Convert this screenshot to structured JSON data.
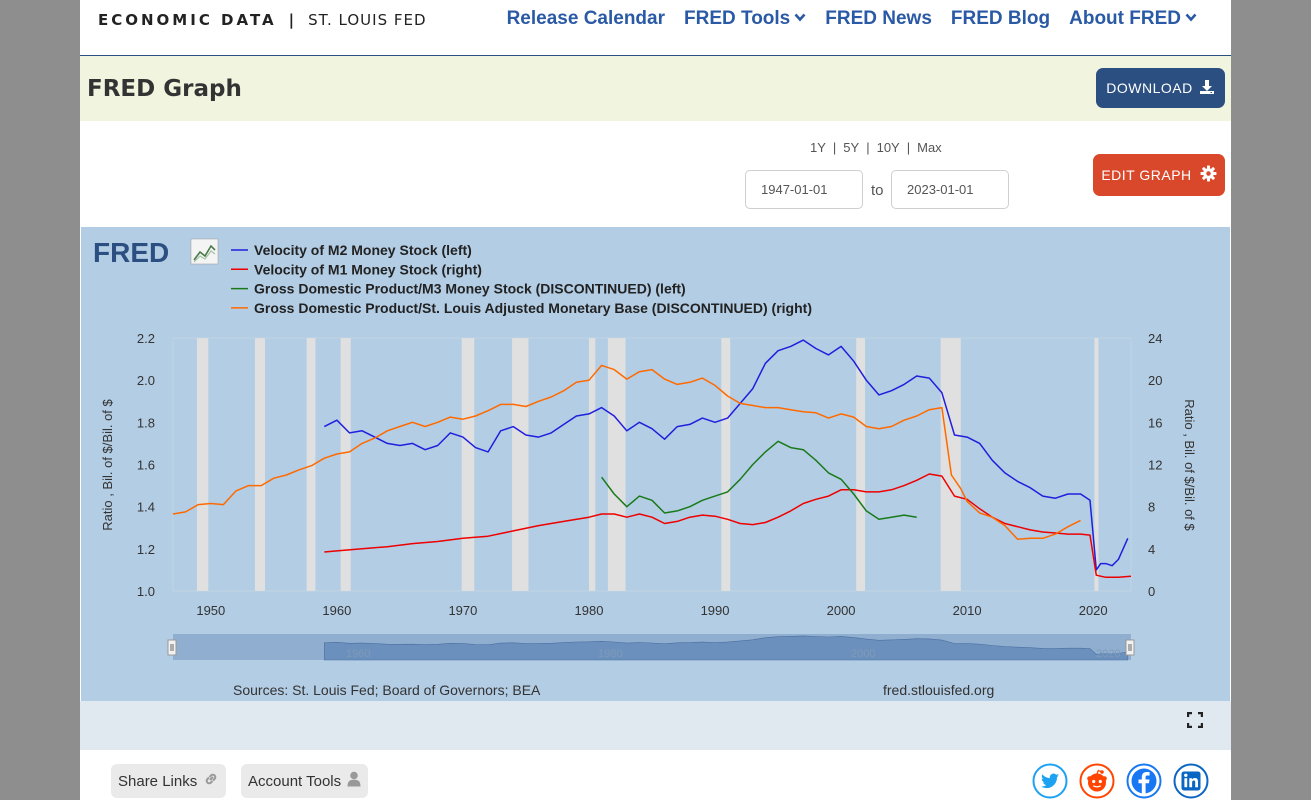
{
  "header": {
    "logo_left": "ECONOMIC DATA",
    "logo_sep": "|",
    "logo_right": "ST. LOUIS FED",
    "nav": [
      {
        "label": "Release Calendar",
        "dropdown": false
      },
      {
        "label": "FRED Tools",
        "dropdown": true
      },
      {
        "label": "FRED News",
        "dropdown": false
      },
      {
        "label": "FRED Blog",
        "dropdown": false
      },
      {
        "label": "About FRED",
        "dropdown": true
      }
    ]
  },
  "title_band": {
    "title": "FRED Graph",
    "download_label": "DOWNLOAD"
  },
  "controls": {
    "ranges": [
      "1Y",
      "5Y",
      "10Y",
      "Max"
    ],
    "start_date": "1947-01-01",
    "to_label": "to",
    "end_date": "2023-01-01",
    "edit_label": "EDIT GRAPH"
  },
  "chart": {
    "logo_text": "FRED",
    "sources": "Sources: St. Louis Fed; Board of Governors; BEA",
    "site": "fred.stlouisfed.org"
  },
  "bottom": {
    "share_label": "Share Links",
    "account_label": "Account Tools"
  },
  "colors": {
    "nav": "#2a5aa5",
    "header_band": "#f1f4df",
    "download_bg": "#2b4f80",
    "edit_bg": "#d9482b",
    "chart_bg": "#e1e9f0",
    "twitter": "#1da1f2",
    "reddit": "#ff4500",
    "facebook": "#1877f2",
    "linkedin": "#0a66c2"
  },
  "icons": {
    "download": "download-icon",
    "edit": "gear-icon",
    "share": "link-icon",
    "account": "user-icon",
    "fullscreen": "expand-icon",
    "social": [
      "twitter-icon",
      "reddit-icon",
      "facebook-icon",
      "linkedin-icon"
    ]
  },
  "chart_data": {
    "type": "line",
    "xlabel": "",
    "ylabel_left": "Ratio , Bil. of $/Bil. of $",
    "ylabel_right": "Ratio , Bil. of $/Bil. of $",
    "xlim": [
      1947,
      2023
    ],
    "ylim_left": [
      1.0,
      2.2
    ],
    "ylim_right": [
      0,
      24
    ],
    "x_ticks": [
      1950,
      1960,
      1970,
      1980,
      1990,
      2000,
      2010,
      2020
    ],
    "y_ticks_left": [
      1.0,
      1.2,
      1.4,
      1.6,
      1.8,
      2.0,
      2.2
    ],
    "y_ticks_left_labels": [
      "1.0",
      "1.2",
      "1.4",
      "1.6",
      "1.8",
      "2.0",
      "2.2"
    ],
    "y_ticks_right": [
      0,
      4,
      8,
      12,
      16,
      20,
      24
    ],
    "grid": false,
    "legend_position": "top-left",
    "recessions": [
      [
        1948.9,
        1949.8
      ],
      [
        1953.5,
        1954.3
      ],
      [
        1957.6,
        1958.3
      ],
      [
        1960.3,
        1961.1
      ],
      [
        1969.9,
        1970.9
      ],
      [
        1973.9,
        1975.2
      ],
      [
        1980.0,
        1980.5
      ],
      [
        1981.5,
        1982.9
      ],
      [
        1990.5,
        1991.2
      ],
      [
        2001.2,
        2001.9
      ],
      [
        2007.9,
        2009.5
      ],
      [
        2020.1,
        2020.3
      ]
    ],
    "series": [
      {
        "name": "Velocity of M2 Money Stock (left)",
        "color": "#1f1fdd",
        "axis": "left",
        "points": [
          [
            1959.0,
            1.78
          ],
          [
            1960.0,
            1.81
          ],
          [
            1961.0,
            1.75
          ],
          [
            1962.0,
            1.76
          ],
          [
            1963.0,
            1.73
          ],
          [
            1964.0,
            1.7
          ],
          [
            1965.0,
            1.69
          ],
          [
            1966.0,
            1.7
          ],
          [
            1967.0,
            1.67
          ],
          [
            1968.0,
            1.69
          ],
          [
            1969.0,
            1.75
          ],
          [
            1970.0,
            1.73
          ],
          [
            1971.0,
            1.68
          ],
          [
            1972.0,
            1.66
          ],
          [
            1973.0,
            1.76
          ],
          [
            1974.0,
            1.78
          ],
          [
            1975.0,
            1.74
          ],
          [
            1976.0,
            1.73
          ],
          [
            1977.0,
            1.75
          ],
          [
            1978.0,
            1.79
          ],
          [
            1979.0,
            1.83
          ],
          [
            1980.0,
            1.84
          ],
          [
            1981.0,
            1.87
          ],
          [
            1982.0,
            1.83
          ],
          [
            1983.0,
            1.76
          ],
          [
            1984.0,
            1.8
          ],
          [
            1985.0,
            1.77
          ],
          [
            1986.0,
            1.72
          ],
          [
            1987.0,
            1.78
          ],
          [
            1988.0,
            1.79
          ],
          [
            1989.0,
            1.82
          ],
          [
            1990.0,
            1.8
          ],
          [
            1991.0,
            1.82
          ],
          [
            1992.0,
            1.89
          ],
          [
            1993.0,
            1.96
          ],
          [
            1994.0,
            2.08
          ],
          [
            1995.0,
            2.14
          ],
          [
            1996.0,
            2.16
          ],
          [
            1997.0,
            2.19
          ],
          [
            1998.0,
            2.15
          ],
          [
            1999.0,
            2.12
          ],
          [
            2000.0,
            2.16
          ],
          [
            2001.0,
            2.09
          ],
          [
            2002.0,
            2.0
          ],
          [
            2003.0,
            1.93
          ],
          [
            2004.0,
            1.95
          ],
          [
            2005.0,
            1.98
          ],
          [
            2006.0,
            2.02
          ],
          [
            2007.0,
            2.01
          ],
          [
            2008.0,
            1.94
          ],
          [
            2009.0,
            1.74
          ],
          [
            2010.0,
            1.73
          ],
          [
            2011.0,
            1.7
          ],
          [
            2012.0,
            1.62
          ],
          [
            2013.0,
            1.56
          ],
          [
            2014.0,
            1.52
          ],
          [
            2015.0,
            1.49
          ],
          [
            2016.0,
            1.45
          ],
          [
            2017.0,
            1.44
          ],
          [
            2018.0,
            1.46
          ],
          [
            2019.0,
            1.46
          ],
          [
            2019.75,
            1.43
          ],
          [
            2020.25,
            1.1
          ],
          [
            2020.6,
            1.13
          ],
          [
            2021.0,
            1.13
          ],
          [
            2021.5,
            1.12
          ],
          [
            2022.0,
            1.15
          ],
          [
            2022.75,
            1.25
          ]
        ]
      },
      {
        "name": "Velocity of M1 Money Stock (right)",
        "color": "#ee0000",
        "axis": "right",
        "points": [
          [
            1959.0,
            3.7
          ],
          [
            1960.0,
            3.8
          ],
          [
            1962.0,
            4.0
          ],
          [
            1964.0,
            4.2
          ],
          [
            1966.0,
            4.5
          ],
          [
            1968.0,
            4.7
          ],
          [
            1970.0,
            5.0
          ],
          [
            1972.0,
            5.2
          ],
          [
            1974.0,
            5.7
          ],
          [
            1976.0,
            6.2
          ],
          [
            1978.0,
            6.6
          ],
          [
            1980.0,
            7.0
          ],
          [
            1981.0,
            7.3
          ],
          [
            1982.0,
            7.3
          ],
          [
            1983.0,
            7.0
          ],
          [
            1984.0,
            7.3
          ],
          [
            1985.0,
            7.0
          ],
          [
            1986.0,
            6.4
          ],
          [
            1987.0,
            6.6
          ],
          [
            1988.0,
            7.0
          ],
          [
            1989.0,
            7.2
          ],
          [
            1990.0,
            7.1
          ],
          [
            1991.0,
            6.8
          ],
          [
            1992.0,
            6.4
          ],
          [
            1993.0,
            6.3
          ],
          [
            1994.0,
            6.5
          ],
          [
            1995.0,
            7.0
          ],
          [
            1996.0,
            7.6
          ],
          [
            1997.0,
            8.3
          ],
          [
            1998.0,
            8.7
          ],
          [
            1999.0,
            9.0
          ],
          [
            2000.0,
            9.6
          ],
          [
            2001.0,
            9.6
          ],
          [
            2002.0,
            9.4
          ],
          [
            2003.0,
            9.4
          ],
          [
            2004.0,
            9.6
          ],
          [
            2005.0,
            10.0
          ],
          [
            2006.0,
            10.5
          ],
          [
            2007.0,
            11.1
          ],
          [
            2008.0,
            10.9
          ],
          [
            2009.0,
            9.0
          ],
          [
            2010.0,
            8.7
          ],
          [
            2011.0,
            7.8
          ],
          [
            2012.0,
            7.0
          ],
          [
            2013.0,
            6.4
          ],
          [
            2014.0,
            6.1
          ],
          [
            2015.0,
            5.8
          ],
          [
            2016.0,
            5.6
          ],
          [
            2017.0,
            5.5
          ],
          [
            2018.0,
            5.4
          ],
          [
            2019.0,
            5.4
          ],
          [
            2019.75,
            5.3
          ],
          [
            2020.25,
            1.5
          ],
          [
            2021.0,
            1.3
          ],
          [
            2022.0,
            1.3
          ],
          [
            2023.0,
            1.4
          ]
        ]
      },
      {
        "name": "Gross Domestic Product/M3 Money Stock (DISCONTINUED) (left)",
        "color": "#1a7a1a",
        "axis": "left",
        "points": [
          [
            1981.0,
            1.54
          ],
          [
            1982.0,
            1.46
          ],
          [
            1983.0,
            1.4
          ],
          [
            1984.0,
            1.45
          ],
          [
            1985.0,
            1.43
          ],
          [
            1986.0,
            1.37
          ],
          [
            1987.0,
            1.38
          ],
          [
            1988.0,
            1.4
          ],
          [
            1989.0,
            1.43
          ],
          [
            1990.0,
            1.45
          ],
          [
            1991.0,
            1.47
          ],
          [
            1992.0,
            1.53
          ],
          [
            1993.0,
            1.6
          ],
          [
            1994.0,
            1.66
          ],
          [
            1995.0,
            1.71
          ],
          [
            1996.0,
            1.68
          ],
          [
            1997.0,
            1.67
          ],
          [
            1998.0,
            1.62
          ],
          [
            1999.0,
            1.56
          ],
          [
            2000.0,
            1.53
          ],
          [
            2001.0,
            1.46
          ],
          [
            2002.0,
            1.38
          ],
          [
            2003.0,
            1.34
          ],
          [
            2004.0,
            1.35
          ],
          [
            2005.0,
            1.36
          ],
          [
            2006.0,
            1.35
          ]
        ]
      },
      {
        "name": "Gross Domestic Product/St. Louis Adjusted Monetary Base (DISCONTINUED) (right)",
        "color": "#ff6a00",
        "axis": "right",
        "points": [
          [
            1947.0,
            7.3
          ],
          [
            1948.0,
            7.5
          ],
          [
            1949.0,
            8.2
          ],
          [
            1950.0,
            8.3
          ],
          [
            1951.0,
            8.2
          ],
          [
            1952.0,
            9.5
          ],
          [
            1953.0,
            10.0
          ],
          [
            1954.0,
            10.0
          ],
          [
            1955.0,
            10.7
          ],
          [
            1956.0,
            11.0
          ],
          [
            1957.0,
            11.5
          ],
          [
            1958.0,
            11.9
          ],
          [
            1959.0,
            12.6
          ],
          [
            1960.0,
            13.0
          ],
          [
            1961.0,
            13.2
          ],
          [
            1962.0,
            14.0
          ],
          [
            1963.0,
            14.5
          ],
          [
            1964.0,
            15.2
          ],
          [
            1965.0,
            15.6
          ],
          [
            1966.0,
            16.0
          ],
          [
            1967.0,
            15.6
          ],
          [
            1968.0,
            16.0
          ],
          [
            1969.0,
            16.5
          ],
          [
            1970.0,
            16.3
          ],
          [
            1971.0,
            16.6
          ],
          [
            1972.0,
            17.1
          ],
          [
            1973.0,
            17.7
          ],
          [
            1974.0,
            17.7
          ],
          [
            1975.0,
            17.5
          ],
          [
            1976.0,
            18.0
          ],
          [
            1977.0,
            18.4
          ],
          [
            1978.0,
            19.0
          ],
          [
            1979.0,
            19.8
          ],
          [
            1980.0,
            20.0
          ],
          [
            1981.0,
            21.4
          ],
          [
            1982.0,
            21.0
          ],
          [
            1983.0,
            20.1
          ],
          [
            1984.0,
            20.8
          ],
          [
            1985.0,
            21.0
          ],
          [
            1986.0,
            20.1
          ],
          [
            1987.0,
            19.6
          ],
          [
            1988.0,
            19.8
          ],
          [
            1989.0,
            20.2
          ],
          [
            1990.0,
            19.5
          ],
          [
            1991.0,
            18.5
          ],
          [
            1992.0,
            17.8
          ],
          [
            1993.0,
            17.6
          ],
          [
            1994.0,
            17.4
          ],
          [
            1995.0,
            17.4
          ],
          [
            1996.0,
            17.2
          ],
          [
            1997.0,
            17.0
          ],
          [
            1998.0,
            16.9
          ],
          [
            1999.0,
            16.4
          ],
          [
            2000.0,
            16.8
          ],
          [
            2001.0,
            16.5
          ],
          [
            2002.0,
            15.6
          ],
          [
            2003.0,
            15.4
          ],
          [
            2004.0,
            15.6
          ],
          [
            2005.0,
            16.2
          ],
          [
            2006.0,
            16.6
          ],
          [
            2007.0,
            17.2
          ],
          [
            2008.0,
            17.4
          ],
          [
            2008.75,
            11.0
          ],
          [
            2009.5,
            9.7
          ],
          [
            2010.0,
            8.5
          ],
          [
            2011.0,
            7.4
          ],
          [
            2012.0,
            7.0
          ],
          [
            2013.0,
            6.2
          ],
          [
            2014.0,
            4.9
          ],
          [
            2015.0,
            5.0
          ],
          [
            2016.0,
            5.0
          ],
          [
            2017.0,
            5.4
          ],
          [
            2018.0,
            6.1
          ],
          [
            2019.0,
            6.7
          ]
        ]
      }
    ]
  }
}
